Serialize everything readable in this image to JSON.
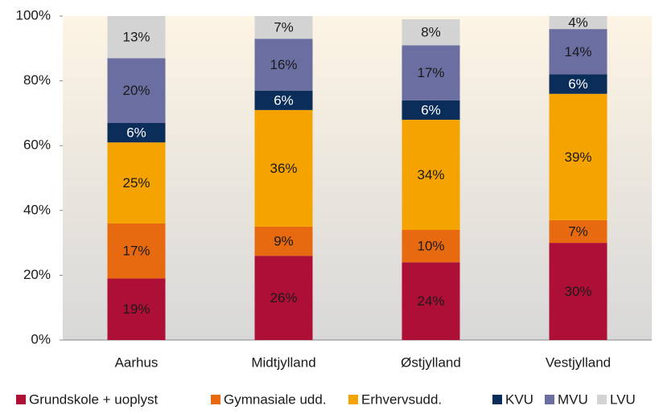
{
  "chart_data": {
    "type": "bar",
    "stacked": true,
    "categories": [
      "Aarhus",
      "Midtjylland",
      "Østjylland",
      "Vestjylland"
    ],
    "series": [
      {
        "name": "Grundskole + uoplyst",
        "color": "#ae0f36",
        "values": [
          19,
          26,
          24,
          30
        ],
        "value_labels": [
          "19%",
          "26%",
          "24%",
          "30%"
        ]
      },
      {
        "name": "Gymnasiale udd.",
        "color": "#e86a10",
        "values": [
          17,
          9,
          10,
          7
        ],
        "value_labels": [
          "17%",
          "9%",
          "10%",
          "7%"
        ]
      },
      {
        "name": "Erhvervsudd.",
        "color": "#f5a300",
        "values": [
          25,
          36,
          34,
          39
        ],
        "value_labels": [
          "25%",
          "36%",
          "34%",
          "39%"
        ]
      },
      {
        "name": "KVU",
        "color": "#0b2d5a",
        "values": [
          6,
          6,
          6,
          6
        ],
        "value_labels": [
          "6%",
          "6%",
          "6%",
          "6%"
        ]
      },
      {
        "name": "MVU",
        "color": "#6b6ea1",
        "values": [
          20,
          16,
          17,
          14
        ],
        "value_labels": [
          "20%",
          "16%",
          "17%",
          "14%"
        ]
      },
      {
        "name": "LVU",
        "color": "#d3d3d3",
        "values": [
          13,
          7,
          8,
          4
        ],
        "value_labels": [
          "13%",
          "7%",
          "8%",
          "4%"
        ]
      }
    ],
    "ylim": [
      0,
      100
    ],
    "yticks": [
      {
        "value": 0,
        "label": "0%"
      },
      {
        "value": 20,
        "label": "20%"
      },
      {
        "value": 40,
        "label": "40%"
      },
      {
        "value": 60,
        "label": "60%"
      },
      {
        "value": 80,
        "label": "80%"
      },
      {
        "value": 100,
        "label": "100%"
      }
    ],
    "legend": "bottom"
  }
}
